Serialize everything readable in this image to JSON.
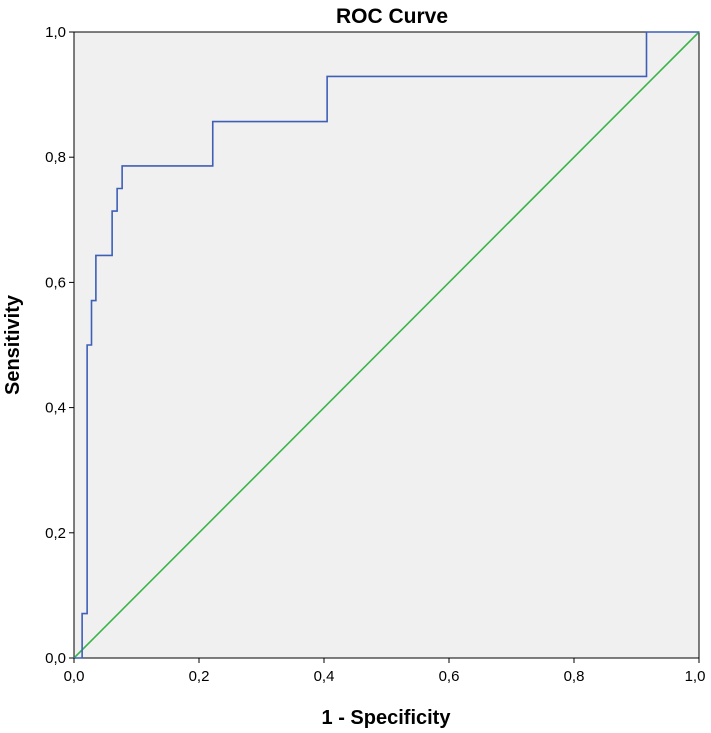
{
  "chart_data": {
    "type": "line",
    "title": "ROC Curve",
    "xlabel": "1 - Specificity",
    "ylabel": "Sensitivity",
    "xlim": [
      0,
      1
    ],
    "ylim": [
      0,
      1
    ],
    "x_ticks": [
      "0,0",
      "0,2",
      "0,4",
      "0,6",
      "0,8",
      "1,0"
    ],
    "y_ticks": [
      "0,0",
      "0,2",
      "0,4",
      "0,6",
      "0,8",
      "1,0"
    ],
    "grid": false,
    "plot_background": "#f0f0f0",
    "series": [
      {
        "color": "#3f5fb7",
        "x": [
          0.0,
          0.013,
          0.013,
          0.021,
          0.021,
          0.028,
          0.028,
          0.035,
          0.035,
          0.061,
          0.061,
          0.069,
          0.069,
          0.077,
          0.077,
          0.222,
          0.222,
          0.405,
          0.405,
          0.916,
          0.916,
          1.0
        ],
        "y": [
          0.0,
          0.0,
          0.071,
          0.071,
          0.5,
          0.5,
          0.571,
          0.571,
          0.643,
          0.643,
          0.714,
          0.714,
          0.75,
          0.75,
          0.786,
          0.786,
          0.857,
          0.857,
          0.929,
          0.929,
          1.0,
          1.0
        ]
      },
      {
        "color": "#3cb44b",
        "x": [
          0,
          1
        ],
        "y": [
          0,
          1
        ]
      }
    ]
  }
}
